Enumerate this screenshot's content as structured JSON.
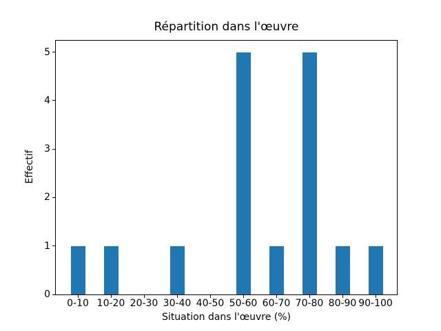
{
  "chart_data": {
    "type": "bar",
    "title": "Répartition dans l'œuvre",
    "xlabel": "Situation dans l'œuvre (%)",
    "ylabel": "Effectif",
    "categories": [
      "0-10",
      "10-20",
      "20-30",
      "30-40",
      "40-50",
      "50-60",
      "60-70",
      "70-80",
      "80-90",
      "90-100"
    ],
    "values": [
      1,
      1,
      0,
      1,
      0,
      5,
      1,
      5,
      1,
      1
    ],
    "ytick_labels": [
      "0",
      "1",
      "2",
      "3",
      "4",
      "5"
    ],
    "ytick_values": [
      0,
      1,
      2,
      3,
      4,
      5
    ],
    "ylim": [
      0,
      5.25
    ],
    "bar_color": "#1f77b4",
    "background_color": "#ffffff",
    "axis_color": "#000000",
    "grid": false,
    "legend_position": "none"
  }
}
